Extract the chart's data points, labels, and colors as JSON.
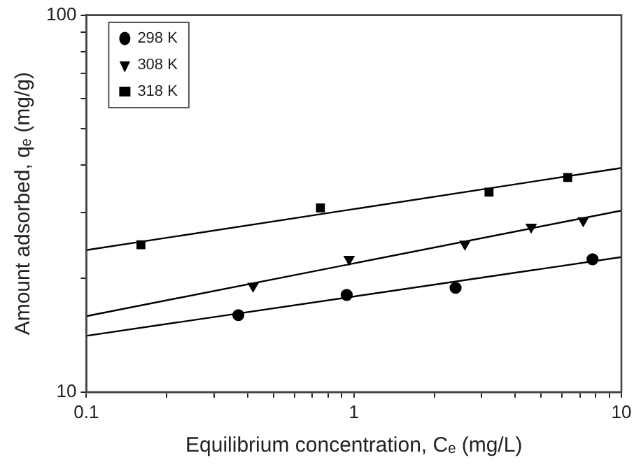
{
  "chart_data": {
    "type": "scatter",
    "xlabel": "Equilibrium concentration, Cₑ (mg/L)",
    "ylabel": "Amount adsorbed, qₑ (mg/g)",
    "log": "xy",
    "xlim": [
      0.1,
      10
    ],
    "ylim": [
      10,
      100
    ],
    "xticks": [
      0.1,
      {
        "value": 0.2,
        "label": null
      },
      {
        "value": 0.3,
        "label": null
      },
      {
        "value": 0.4,
        "label": null
      },
      {
        "value": 0.5,
        "label": null
      },
      {
        "value": 0.6,
        "label": null
      },
      {
        "value": 0.7,
        "label": null
      },
      {
        "value": 0.8,
        "label": null
      },
      {
        "value": 0.9,
        "label": null
      },
      1,
      {
        "value": 2,
        "label": null
      },
      {
        "value": 3,
        "label": null
      },
      {
        "value": 4,
        "label": null
      },
      {
        "value": 5,
        "label": null
      },
      {
        "value": 6,
        "label": null
      },
      {
        "value": 7,
        "label": null
      },
      {
        "value": 8,
        "label": null
      },
      {
        "value": 9,
        "label": null
      },
      10
    ],
    "yticks": [
      10,
      {
        "value": 20,
        "label": null
      },
      {
        "value": 30,
        "label": null
      },
      {
        "value": 40,
        "label": null
      },
      {
        "value": 50,
        "label": null
      },
      {
        "value": 60,
        "label": null
      },
      {
        "value": 70,
        "label": null
      },
      {
        "value": 80,
        "label": null
      },
      {
        "value": 90,
        "label": null
      },
      100
    ],
    "grid": false,
    "legend": "top left",
    "series": [
      {
        "name": "298 K",
        "color": "#000000",
        "marker": "circle",
        "x": [
          0.37,
          0.94,
          2.4,
          7.8
        ],
        "values": [
          16.0,
          18.1,
          18.9,
          22.5
        ]
      },
      {
        "name": "308 K",
        "color": "#000000",
        "marker": "triangle",
        "x": [
          0.42,
          0.96,
          2.6,
          4.6,
          7.2
        ],
        "values": [
          19.1,
          22.5,
          24.7,
          27.4,
          28.5
        ]
      },
      {
        "name": "318 K",
        "color": "#000000",
        "marker": "square",
        "x": [
          0.16,
          0.75,
          3.2,
          6.3
        ],
        "values": [
          24.6,
          30.8,
          33.9,
          37.1
        ]
      },
      {
        "type": "line",
        "color": "#000000",
        "marker": "none",
        "x": [
          0.1,
          10
        ],
        "values": [
          14.1,
          22.8
        ]
      },
      {
        "type": "line",
        "color": "#000000",
        "marker": "none",
        "x": [
          0.1,
          10
        ],
        "values": [
          15.9,
          30.3
        ]
      },
      {
        "type": "line",
        "color": "#000000",
        "marker": "none",
        "x": [
          0.1,
          10
        ],
        "values": [
          23.8,
          39.3
        ]
      }
    ]
  }
}
